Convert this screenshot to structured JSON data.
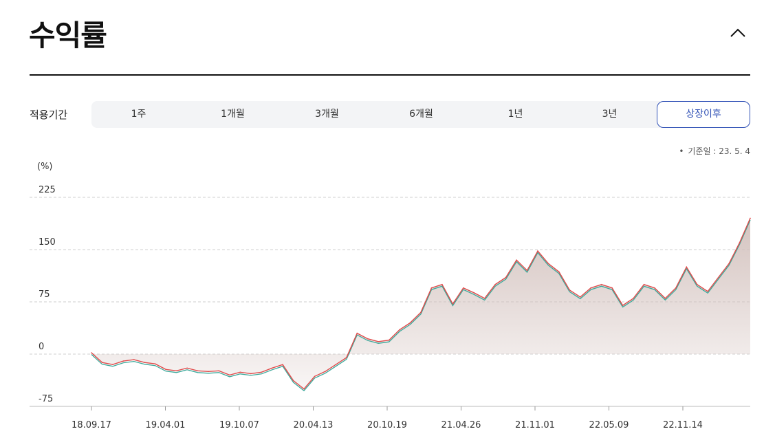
{
  "header": {
    "title": "수익률"
  },
  "period": {
    "label": "적용기간",
    "options": [
      "1주",
      "1개월",
      "3개월",
      "6개월",
      "1년",
      "3년",
      "상장이후"
    ],
    "selected": "상장이후"
  },
  "as_of": "기준일 : 23. 5. 4",
  "colors": {
    "accent": "#2e4fb5",
    "series_main": "#e04b4b",
    "series_secondary": "#3aa89a",
    "fill": "#d2c0bc"
  },
  "chart_data": {
    "type": "area",
    "ylabel": "(%)",
    "ylim": [
      -75,
      225
    ],
    "yticks": [
      225,
      150,
      75,
      0,
      -75
    ],
    "x_tick_labels": [
      "18.09.17",
      "19.04.01",
      "19.10.07",
      "20.04.13",
      "20.10.19",
      "21.04.26",
      "21.11.01",
      "22.05.09",
      "22.11.14"
    ],
    "grid": true,
    "series": [
      {
        "x": [
          "18.09.17",
          "18.10.15",
          "18.11.12",
          "18.12.10",
          "19.01.07",
          "19.02.04",
          "19.03.04",
          "19.04.01",
          "19.04.29",
          "19.05.27",
          "19.06.24",
          "19.07.22",
          "19.08.19",
          "19.09.16",
          "19.10.07",
          "19.11.04",
          "19.12.02",
          "19.12.30",
          "20.01.27",
          "20.02.24",
          "20.03.23",
          "20.04.13",
          "20.05.11",
          "20.06.08",
          "20.07.06",
          "20.08.03",
          "20.08.31",
          "20.09.28",
          "20.10.19",
          "20.11.16",
          "20.12.14",
          "21.01.11",
          "21.02.08",
          "21.03.08",
          "21.04.05",
          "21.04.26",
          "21.05.24",
          "21.06.21",
          "21.07.19",
          "21.08.16",
          "21.09.13",
          "21.10.11",
          "21.11.01",
          "21.11.29",
          "21.12.27",
          "22.01.24",
          "22.02.21",
          "22.03.21",
          "22.04.18",
          "22.05.09",
          "22.06.06",
          "22.07.04",
          "22.08.01",
          "22.08.29",
          "22.09.26",
          "22.10.24",
          "22.11.14",
          "22.12.12",
          "23.01.09",
          "23.02.06",
          "23.03.06",
          "23.04.03",
          "23.05.04"
        ],
        "values": [
          2,
          -12,
          -15,
          -10,
          -8,
          -12,
          -14,
          -22,
          -24,
          -20,
          -24,
          -25,
          -24,
          -30,
          -26,
          -28,
          -26,
          -20,
          -15,
          -38,
          -50,
          -32,
          -25,
          -15,
          -5,
          30,
          22,
          18,
          20,
          35,
          45,
          60,
          95,
          100,
          72,
          95,
          88,
          80,
          100,
          110,
          135,
          120,
          148,
          130,
          118,
          92,
          82,
          95,
          100,
          95,
          70,
          80,
          100,
          95,
          80,
          95,
          125,
          100,
          90,
          110,
          130,
          160,
          195
        ]
      }
    ]
  }
}
